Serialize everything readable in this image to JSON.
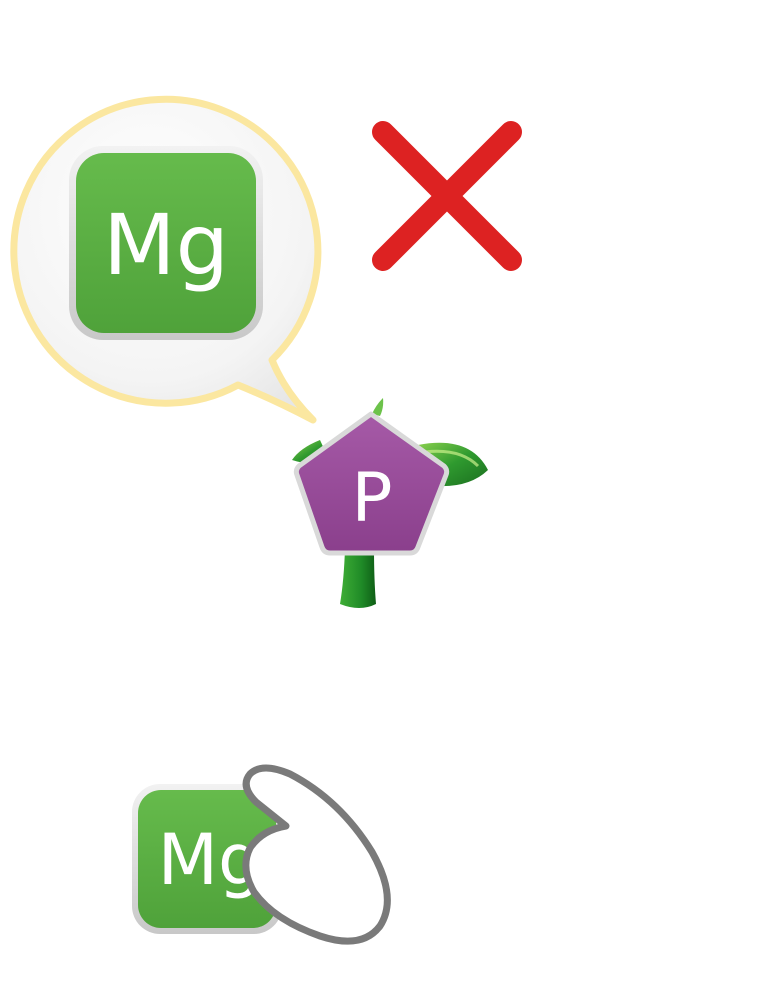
{
  "speech_bubble": {
    "element_label": "Mg"
  },
  "cross_mark": {
    "icon": "cross-icon",
    "color": "#dd2222"
  },
  "plant": {
    "nutrient_label": "P",
    "pentagon_color": "#9b4f9d",
    "leaf_color": "#2f9a2f"
  },
  "bottom_tile": {
    "element_label": "Mg"
  },
  "colors": {
    "tile_green": "#5fb446",
    "bubble_outline": "#fbe7a0",
    "hand_outline": "#7a7a7a"
  }
}
